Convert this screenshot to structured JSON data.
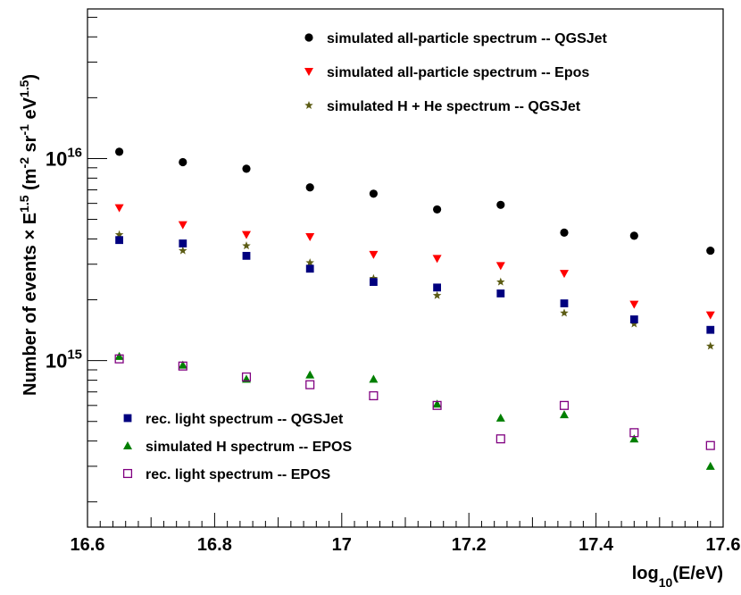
{
  "chart_data": {
    "type": "scatter",
    "xlabel": {
      "base": "log",
      "sub": "10",
      "rest": "(E/eV)"
    },
    "ylabel": {
      "a": "Number of events × E",
      "a_sup": "1.5",
      "b": " (m",
      "b_sup": "-2",
      "c": " sr",
      "c_sup": "-1",
      "d": " eV",
      "d_sup": "1.5",
      "e": ")"
    },
    "xlim": [
      16.6,
      17.6
    ],
    "ylim": [
      150000000000000.0,
      5.5e+16
    ],
    "yscale": "log",
    "x_ticks": [
      {
        "v": 16.6,
        "label": "16.6"
      },
      {
        "v": 16.8,
        "label": "16.8"
      },
      {
        "v": 17.0,
        "label": "17"
      },
      {
        "v": 17.2,
        "label": "17.2"
      },
      {
        "v": 17.4,
        "label": "17.4"
      },
      {
        "v": 17.6,
        "label": "17.6"
      }
    ],
    "y_ticks": [
      {
        "v": 1000000000000000.0,
        "base": "10",
        "exp": "15"
      },
      {
        "v": 1e+16,
        "base": "10",
        "exp": "16"
      }
    ],
    "legend_top": "top-right",
    "legend_bottom": "bottom-left",
    "x": [
      16.65,
      16.75,
      16.85,
      16.95,
      17.05,
      17.15,
      17.25,
      17.35,
      17.46,
      17.58
    ],
    "series": [
      {
        "name": "simulated all-particle spectrum -- QGSJet",
        "marker": "circle",
        "color": "#000000",
        "legend": "top",
        "values": [
          1.08e+16,
          9600000000000000.0,
          8900000000000000.0,
          7200000000000000.0,
          6700000000000000.0,
          5600000000000000.0,
          5900000000000000.0,
          4300000000000000.0,
          4150000000000000.0,
          3500000000000000.0
        ]
      },
      {
        "name": "simulated all-particle spectrum -- Epos",
        "marker": "triangle-down",
        "color": "#ff0000",
        "legend": "top",
        "values": [
          5700000000000000.0,
          4700000000000000.0,
          4200000000000000.0,
          4100000000000000.0,
          3350000000000000.0,
          3200000000000000.0,
          2950000000000000.0,
          2700000000000000.0,
          1900000000000000.0,
          1680000000000000.0
        ]
      },
      {
        "name": "simulated H + He spectrum -- QGSJet",
        "marker": "star",
        "color": "#5c5c14",
        "legend": "top",
        "values": [
          4200000000000000.0,
          3500000000000000.0,
          3700000000000000.0,
          3050000000000000.0,
          2550000000000000.0,
          2100000000000000.0,
          2450000000000000.0,
          1720000000000000.0,
          1520000000000000.0,
          1180000000000000.0
        ]
      },
      {
        "name": "rec. light spectrum -- QGSJet",
        "marker": "square",
        "color": "#00007f",
        "legend": "bottom",
        "values": [
          3950000000000000.0,
          3800000000000000.0,
          3300000000000000.0,
          2850000000000000.0,
          2450000000000000.0,
          2300000000000000.0,
          2150000000000000.0,
          1920000000000000.0,
          1600000000000000.0,
          1420000000000000.0
        ]
      },
      {
        "name": "simulated H spectrum -- EPOS",
        "marker": "triangle-up",
        "color": "#007f00",
        "legend": "bottom",
        "values": [
          1050000000000000.0,
          950000000000000.0,
          810000000000000.0,
          850000000000000.0,
          810000000000000.0,
          610000000000000.0,
          520000000000000.0,
          540000000000000.0,
          410000000000000.0,
          300000000000000.0
        ]
      },
      {
        "name": "rec. light spectrum -- EPOS",
        "marker": "open-square",
        "color": "#800080",
        "legend": "bottom",
        "values": [
          1020000000000000.0,
          940000000000000.0,
          830000000000000.0,
          760000000000000.0,
          670000000000000.0,
          600000000000000.0,
          410000000000000.0,
          600000000000000.0,
          440000000000000.0,
          380000000000000.0
        ]
      }
    ]
  }
}
